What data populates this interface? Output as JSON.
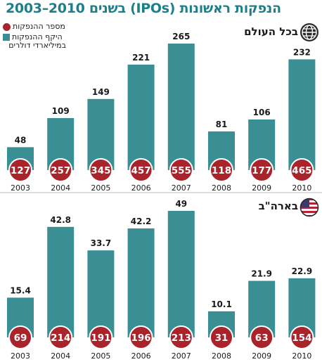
{
  "title": "הנפקות ראשונות (IPOs) בשנים 2010–2003",
  "legend": {
    "count_label": "מספר ההנפקות",
    "volume_label_line1": "היקף ההנפקות",
    "volume_label_line2": "במיליארדי דולרים"
  },
  "colors": {
    "bar": "#3a8f94",
    "circle": "#a8232a",
    "title": "#1e7f8c"
  },
  "icons": {
    "world": "globe-icon",
    "us": "us-flag-icon"
  },
  "chart_data": [
    {
      "type": "bar",
      "section_label": "בכל העולם",
      "categories": [
        "2003",
        "2004",
        "2005",
        "2006",
        "2007",
        "2008",
        "2009",
        "2010"
      ],
      "series": [
        {
          "name": "היקף ההנפקות",
          "values": [
            48,
            109,
            149,
            221,
            265,
            81,
            106,
            232
          ]
        },
        {
          "name": "מספר ההנפקות",
          "values": [
            127,
            257,
            345,
            457,
            555,
            118,
            177,
            465
          ]
        }
      ],
      "value_labels": [
        "48",
        "109",
        "149",
        "221",
        "265",
        "81",
        "106",
        "232"
      ],
      "count_labels": [
        "127",
        "257",
        "345",
        "457",
        "555",
        "118",
        "177",
        "465"
      ]
    },
    {
      "type": "bar",
      "section_label": "בארה\"ב",
      "categories": [
        "2003",
        "2004",
        "2005",
        "2006",
        "2007",
        "2008",
        "2009",
        "2010"
      ],
      "series": [
        {
          "name": "היקף ההנפקות",
          "values": [
            15.4,
            42.8,
            33.7,
            42.2,
            49,
            10.1,
            21.9,
            22.9
          ]
        },
        {
          "name": "מספר ההנפקות",
          "values": [
            69,
            214,
            191,
            196,
            213,
            31,
            63,
            154
          ]
        }
      ],
      "value_labels": [
        "15.4",
        "42.8",
        "33.7",
        "42.2",
        "49",
        "10.1",
        "21.9",
        "22.9"
      ],
      "count_labels": [
        "69",
        "214",
        "191",
        "196",
        "213",
        "31",
        "63",
        "154"
      ]
    }
  ]
}
